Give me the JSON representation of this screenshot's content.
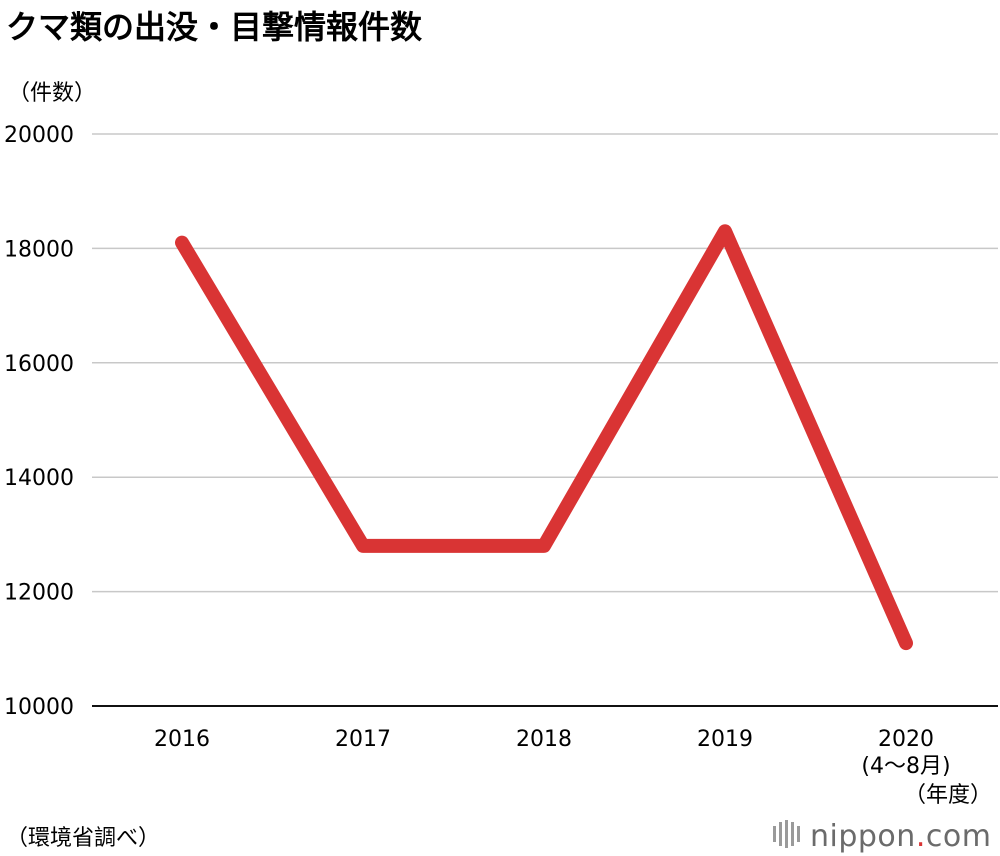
{
  "chart_data": {
    "type": "line",
    "title": "クマ類の出没・目撃情報件数",
    "ylabel": "（件数）",
    "xlabel": "（年度）",
    "categories": [
      "2016",
      "2017",
      "2018",
      "2019",
      "2020"
    ],
    "category_sublabels": [
      "",
      "",
      "",
      "",
      "(4～8月)"
    ],
    "series": [
      {
        "values": [
          18100,
          12800,
          12800,
          18300,
          11100
        ]
      }
    ],
    "ylim": [
      10000,
      20000
    ],
    "yticks": [
      10000,
      12000,
      14000,
      16000,
      18000,
      20000
    ],
    "grid": true,
    "line_color": "#d93434",
    "grid_color": "#c8c8c8"
  },
  "footer": {
    "source": "（環境省調べ）",
    "brand_main": "nippon",
    "brand_dot": ".",
    "brand_tld": "com",
    "brand_dot_color": "#d93434",
    "brand_color": "#6b6b6b"
  }
}
